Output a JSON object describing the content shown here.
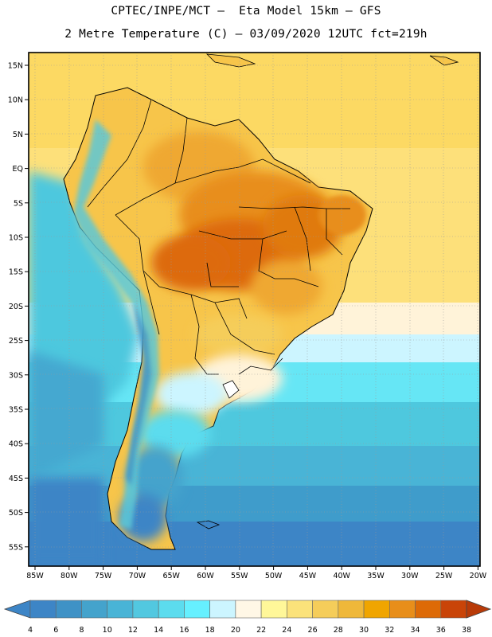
{
  "header": {
    "line1": "CPTEC/INPE/MCT –  Eta Model 15km – GFS",
    "line2": "2 Metre Temperature (C) – 03/09/2020 12UTC fct=219h"
  },
  "map": {
    "lat_labels": [
      "15N",
      "10N",
      "5N",
      "EQ",
      "5S",
      "10S",
      "15S",
      "20S",
      "25S",
      "30S",
      "35S",
      "40S",
      "45S",
      "50S",
      "55S"
    ],
    "lon_labels": [
      "85W",
      "80W",
      "75W",
      "70W",
      "65W",
      "60W",
      "55W",
      "50W",
      "45W",
      "40W",
      "35W",
      "30W",
      "25W",
      "20W"
    ]
  },
  "colorbar": {
    "labels": [
      "4",
      "6",
      "8",
      "10",
      "12",
      "14",
      "16",
      "18",
      "20",
      "22",
      "24",
      "26",
      "28",
      "30",
      "32",
      "34",
      "36",
      "38"
    ],
    "colors": [
      "#3d85c6",
      "#3d85c6",
      "#3f92c6",
      "#44a3cc",
      "#49b4d6",
      "#52c8e0",
      "#5cdcee",
      "#66f0ff",
      "#ccf5ff",
      "#fff7e6",
      "#fff799",
      "#fbe27a",
      "#f5cd5a",
      "#efb83a",
      "#f0a500",
      "#e88e1a",
      "#dd6a07",
      "#c94408",
      "#b83a08"
    ]
  }
}
